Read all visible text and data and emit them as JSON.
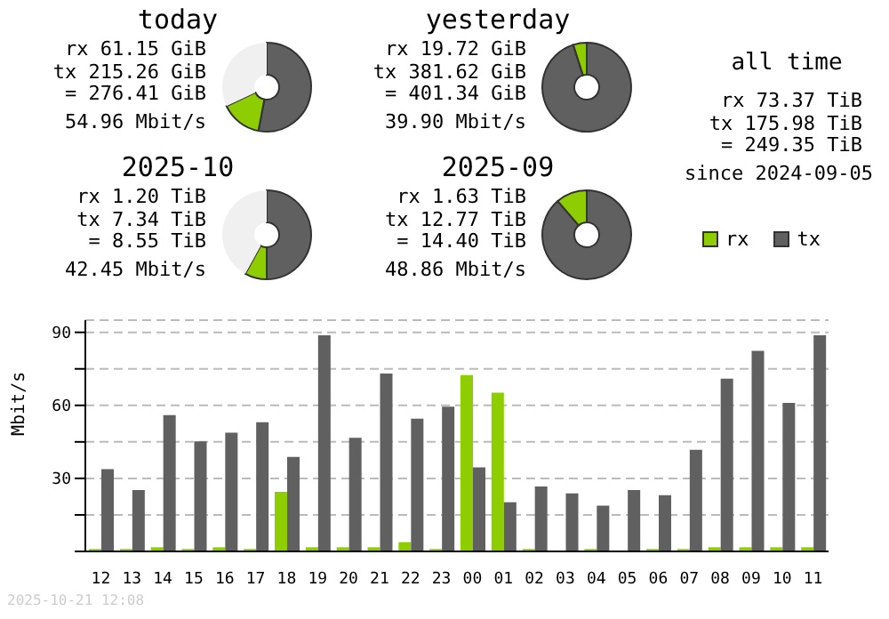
{
  "chart_data": [
    {
      "type": "donut",
      "title": "today",
      "categories": [
        null,
        null,
        null
      ],
      "values": [
        53,
        15,
        32
      ],
      "colors": [
        "#606060",
        "#8ece00",
        "#f0f0f0"
      ],
      "annotations": [
        "rx 61.15 GiB",
        "tx 215.26 GiB",
        "= 276.41 GiB",
        "54.96 Mbit/s"
      ]
    },
    {
      "type": "donut",
      "title": "yesterday",
      "categories": [
        null,
        null
      ],
      "values": [
        95.1,
        4.9
      ],
      "colors": [
        "#606060",
        "#8ece00"
      ],
      "annotations": [
        "rx 19.72 GiB",
        "tx 381.62 GiB",
        "= 401.34 GiB",
        "39.90 Mbit/s"
      ]
    },
    {
      "type": "donut",
      "title": "2025-10",
      "categories": [
        null,
        null,
        null
      ],
      "values": [
        50,
        8,
        42
      ],
      "colors": [
        "#606060",
        "#8ece00",
        "#f0f0f0"
      ],
      "annotations": [
        "rx 1.20 TiB",
        "tx 7.34 TiB",
        "= 8.55 TiB",
        "42.45 Mbit/s"
      ]
    },
    {
      "type": "donut",
      "title": "2025-09",
      "categories": [
        null,
        null
      ],
      "values": [
        88.7,
        11.3
      ],
      "colors": [
        "#606060",
        "#8ece00"
      ],
      "annotations": [
        "rx 1.63 TiB",
        "tx 12.77 TiB",
        "= 14.40 TiB",
        "48.86 Mbit/s"
      ]
    },
    {
      "type": "other",
      "title": "all time",
      "annotations": [
        "rx 73.37 TiB",
        "tx 175.98 TiB",
        "= 249.35 TiB",
        "since 2024-09-05"
      ]
    },
    {
      "type": "bar",
      "ylabel": "Mbit/s",
      "categories": [
        "12",
        "13",
        "14",
        "15",
        "16",
        "17",
        "18",
        "19",
        "20",
        "21",
        "22",
        "23",
        "00",
        "01",
        "02",
        "03",
        "04",
        "05",
        "06",
        "07",
        "08",
        "09",
        "10",
        "11"
      ],
      "series": [
        {
          "name": "rx",
          "color": "#8ece00",
          "values": [
            1,
            1,
            1.7,
            1,
            1.7,
            1,
            24.5,
            1.7,
            1.7,
            1.7,
            3.8,
            1,
            72.4,
            65.2,
            1,
            null,
            1,
            null,
            1,
            1,
            1.7,
            1.7,
            1.7,
            1.7
          ]
        },
        {
          "name": "tx",
          "color": "#606060",
          "values": [
            33.8,
            25.2,
            56,
            45.2,
            48.8,
            53.1,
            38.8,
            88.8,
            46.7,
            73.1,
            54.5,
            59.5,
            34.5,
            20.2,
            26.7,
            23.8,
            18.8,
            25.2,
            23.1,
            41.7,
            71,
            82.4,
            61,
            88.8
          ]
        }
      ],
      "ylim": [
        0,
        95
      ],
      "yticks": [
        {
          "value": 0,
          "label": null
        },
        {
          "value": 15,
          "label": null
        },
        30,
        {
          "value": 45,
          "label": null
        },
        60,
        {
          "value": 75,
          "label": null
        },
        90
      ],
      "grid": "y",
      "legend": "top right",
      "annotations": [
        "2025-10-21 12:08"
      ]
    }
  ]
}
